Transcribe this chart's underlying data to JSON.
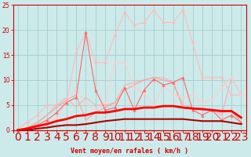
{
  "x": [
    0,
    1,
    2,
    3,
    4,
    5,
    6,
    7,
    8,
    9,
    10,
    11,
    12,
    13,
    14,
    15,
    16,
    17,
    18,
    19,
    20,
    21,
    22,
    23
  ],
  "lines": [
    {
      "y": [
        0.3,
        1.5,
        3.0,
        5.0,
        5.0,
        5.5,
        15.5,
        19.5,
        13.5,
        13.5,
        19.0,
        23.5,
        21.0,
        21.5,
        24.0,
        21.5,
        21.5,
        24.0,
        17.5,
        10.5,
        10.5,
        10.5,
        7.0,
        7.0
      ],
      "color": "#ffbbbb",
      "lw": 0.8,
      "marker": "D",
      "ms": 2.0,
      "alpha": 1.0
    },
    {
      "y": [
        0.0,
        0.5,
        1.5,
        3.0,
        5.0,
        6.5,
        4.5,
        6.5,
        5.0,
        5.0,
        5.5,
        9.0,
        9.5,
        10.0,
        10.5,
        10.5,
        9.5,
        5.0,
        4.5,
        4.0,
        4.0,
        3.0,
        10.5,
        7.0
      ],
      "color": "#ffaaaa",
      "lw": 0.8,
      "marker": null,
      "ms": 0,
      "alpha": 0.9
    },
    {
      "y": [
        0.0,
        0.5,
        1.5,
        3.0,
        4.5,
        6.0,
        7.0,
        2.0,
        3.5,
        4.5,
        5.5,
        8.0,
        9.0,
        10.0,
        10.5,
        10.0,
        9.5,
        4.5,
        4.5,
        4.0,
        4.0,
        3.5,
        4.0,
        1.5
      ],
      "color": "#ff9999",
      "lw": 0.8,
      "marker": null,
      "ms": 0,
      "alpha": 0.9
    },
    {
      "y": [
        0.0,
        0.5,
        1.0,
        1.5,
        2.5,
        5.5,
        8.0,
        5.5,
        4.0,
        5.5,
        13.5,
        13.5,
        8.5,
        7.5,
        5.0,
        9.0,
        7.0,
        6.5,
        7.0,
        5.5,
        6.0,
        8.5,
        10.5,
        7.0
      ],
      "color": "#ffcccc",
      "lw": 0.8,
      "marker": "D",
      "ms": 2.0,
      "alpha": 1.0
    },
    {
      "y": [
        0.0,
        0.5,
        1.0,
        2.0,
        3.5,
        5.5,
        6.5,
        19.5,
        8.0,
        4.0,
        4.5,
        8.5,
        4.0,
        8.0,
        10.2,
        9.0,
        9.5,
        10.5,
        4.0,
        3.0,
        4.0,
        2.0,
        3.0,
        1.5
      ],
      "color": "#ff6666",
      "lw": 0.8,
      "marker": "^",
      "ms": 2.5,
      "alpha": 1.0
    },
    {
      "y": [
        0.0,
        0.0,
        0.3,
        0.5,
        0.8,
        1.0,
        1.0,
        1.2,
        1.5,
        1.8,
        2.0,
        2.2,
        2.2,
        2.2,
        2.2,
        2.2,
        2.2,
        2.2,
        2.0,
        1.8,
        1.8,
        1.8,
        1.5,
        1.2
      ],
      "color": "#aa0000",
      "lw": 1.5,
      "marker": null,
      "ms": 0,
      "alpha": 1.0
    },
    {
      "y": [
        0.0,
        0.3,
        0.8,
        1.2,
        1.8,
        2.2,
        2.8,
        3.0,
        3.5,
        3.5,
        3.8,
        4.2,
        4.2,
        4.5,
        4.5,
        4.8,
        4.8,
        4.5,
        4.3,
        4.2,
        4.0,
        3.8,
        3.8,
        2.5
      ],
      "color": "#ff0000",
      "lw": 2.0,
      "marker": null,
      "ms": 0,
      "alpha": 1.0
    }
  ],
  "xlim": [
    -0.5,
    23.5
  ],
  "ylim": [
    -0.5,
    25
  ],
  "yticks": [
    0,
    5,
    10,
    15,
    20,
    25
  ],
  "xticks": [
    0,
    1,
    2,
    3,
    4,
    5,
    6,
    7,
    8,
    9,
    10,
    11,
    12,
    13,
    14,
    15,
    16,
    17,
    18,
    19,
    20,
    21,
    22,
    23
  ],
  "xlabel": "Vent moyen/en rafales ( km/h )",
  "bg_color": "#cceaea",
  "grid_color": "#aacccc",
  "tick_color": "#cc0000",
  "label_color": "#cc0000",
  "spine_color": "#cc0000"
}
